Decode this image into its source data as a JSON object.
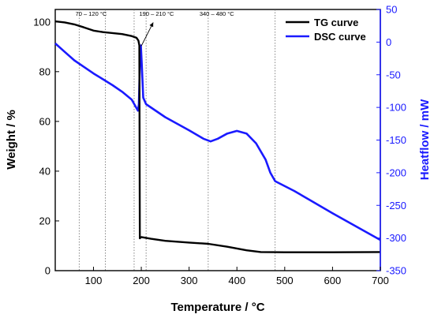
{
  "chart_data": {
    "type": "line",
    "xlabel": "Temperature / °C",
    "ylabel_left": "Weight / %",
    "ylabel_right": "Heatflow / mW",
    "xlim": [
      20,
      700
    ],
    "ylim_left": [
      0,
      105
    ],
    "ylim_right": [
      -350,
      50
    ],
    "x_ticks": [
      100,
      200,
      300,
      400,
      500,
      600,
      700
    ],
    "y_left_ticks": [
      0,
      20,
      40,
      60,
      80,
      100
    ],
    "y_right_ticks": [
      50,
      0,
      -50,
      -100,
      -150,
      -200,
      -250,
      -300,
      -350
    ],
    "grid": false,
    "legend_position": "top-right",
    "colors": {
      "tg": "#000000",
      "dsc": "#1a1aff"
    },
    "series": [
      {
        "name": "TG curve",
        "axis": "left",
        "color": "#000000",
        "points": [
          [
            20,
            100.2
          ],
          [
            40,
            99.8
          ],
          [
            60,
            99.0
          ],
          [
            80,
            97.8
          ],
          [
            100,
            96.5
          ],
          [
            120,
            95.9
          ],
          [
            140,
            95.5
          ],
          [
            160,
            95.1
          ],
          [
            180,
            94.3
          ],
          [
            190,
            93.6
          ],
          [
            194,
            92.5
          ],
          [
            196,
            90.5
          ],
          [
            197,
            13.0
          ],
          [
            200,
            13.5
          ],
          [
            220,
            12.8
          ],
          [
            250,
            12.0
          ],
          [
            300,
            11.3
          ],
          [
            340,
            10.8
          ],
          [
            380,
            9.6
          ],
          [
            420,
            8.2
          ],
          [
            450,
            7.5
          ],
          [
            500,
            7.4
          ],
          [
            600,
            7.4
          ],
          [
            700,
            7.5
          ]
        ]
      },
      {
        "name": "DSC curve",
        "axis": "right",
        "color": "#1a1aff",
        "points": [
          [
            20,
            -2
          ],
          [
            40,
            -15
          ],
          [
            60,
            -28
          ],
          [
            80,
            -38
          ],
          [
            100,
            -48
          ],
          [
            120,
            -57
          ],
          [
            140,
            -66
          ],
          [
            160,
            -76
          ],
          [
            180,
            -88
          ],
          [
            193,
            -105
          ],
          [
            195,
            -95
          ],
          [
            197,
            -35
          ],
          [
            199,
            -5
          ],
          [
            201,
            -35
          ],
          [
            204,
            -85
          ],
          [
            210,
            -95
          ],
          [
            250,
            -115
          ],
          [
            300,
            -135
          ],
          [
            330,
            -148
          ],
          [
            345,
            -152
          ],
          [
            360,
            -148
          ],
          [
            380,
            -140
          ],
          [
            400,
            -136
          ],
          [
            420,
            -140
          ],
          [
            440,
            -155
          ],
          [
            460,
            -180
          ],
          [
            470,
            -200
          ],
          [
            480,
            -213
          ],
          [
            520,
            -228
          ],
          [
            600,
            -262
          ],
          [
            700,
            -303
          ]
        ]
      }
    ],
    "annotations": [
      {
        "text": "70 – 120 °C",
        "x": 95,
        "y": 102.5
      },
      {
        "text": "190 – 210 °C",
        "x": 232,
        "y": 102.5
      },
      {
        "text": "340 – 480 °C",
        "x": 358,
        "y": 102.5
      }
    ],
    "arrow": {
      "from": [
        200,
        90.3
      ],
      "to": [
        225,
        99.8
      ]
    },
    "reference_lines_x": [
      70,
      125,
      185,
      210,
      340,
      480
    ]
  }
}
